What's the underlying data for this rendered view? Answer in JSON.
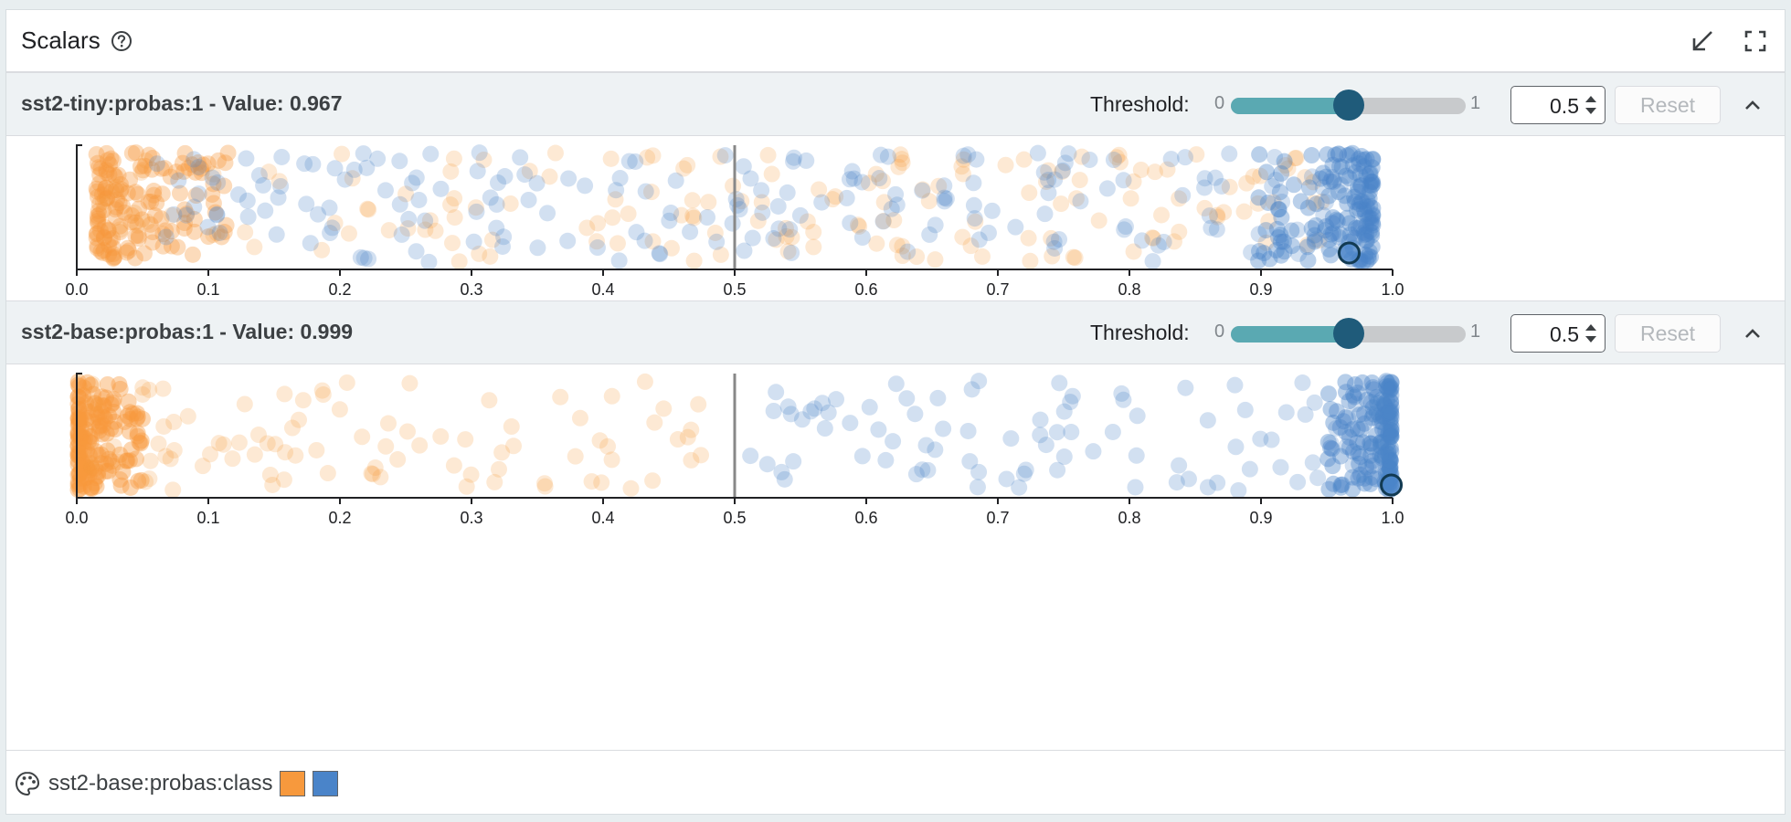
{
  "module": {
    "title": "Scalars"
  },
  "panels": [
    {
      "title": "sst2-tiny:probas:1 - Value: 0.967",
      "threshold_label": "Threshold:",
      "slider_min": "0",
      "slider_max": "1",
      "slider_value": 0.5,
      "threshold_value": "0.5",
      "reset_label": "Reset",
      "selected_value": 0.967
    },
    {
      "title": "sst2-base:probas:1 - Value: 0.999",
      "threshold_label": "Threshold:",
      "slider_min": "0",
      "slider_max": "1",
      "slider_value": 0.5,
      "threshold_value": "0.5",
      "reset_label": "Reset",
      "selected_value": 0.999
    }
  ],
  "legend": {
    "label": "sst2-base:probas:class",
    "swatches": [
      "#f7993d",
      "#4a84c9"
    ]
  },
  "colors": {
    "class_0": "#f7993d",
    "class_1": "#4a84c9",
    "threshold_line": "#888888",
    "accent": "#5aa9b2"
  },
  "icons": {
    "help": "help-circle-icon",
    "collapse_module": "arrow-down-left-icon",
    "fullscreen": "fullscreen-icon",
    "panel_collapse": "chevron-up-icon",
    "palette": "palette-icon"
  },
  "chart_data": [
    {
      "type": "scatter",
      "title": "sst2-tiny:probas:1",
      "xlim": [
        0,
        1
      ],
      "x_ticks": [
        "0.0",
        "0.1",
        "0.2",
        "0.3",
        "0.4",
        "0.5",
        "0.6",
        "0.7",
        "0.8",
        "0.9",
        "1.0"
      ],
      "threshold": 0.5,
      "selected_point": 0.967,
      "series": [
        {
          "name": "0",
          "color": "#f7993d",
          "density": "concentrated near 0.0, sparse up to 0.95"
        },
        {
          "name": "1",
          "color": "#4a84c9",
          "density": "concentrated near 1.0, sparse down to 0.05"
        }
      ]
    },
    {
      "type": "scatter",
      "title": "sst2-base:probas:1",
      "xlim": [
        0,
        1
      ],
      "x_ticks": [
        "0.0",
        "0.1",
        "0.2",
        "0.3",
        "0.4",
        "0.5",
        "0.6",
        "0.7",
        "0.8",
        "0.9",
        "1.0"
      ],
      "threshold": 0.5,
      "selected_point": 0.999,
      "series": [
        {
          "name": "0",
          "color": "#f7993d",
          "density": "strongly concentrated at 0.0, sparse up to 0.48"
        },
        {
          "name": "1",
          "color": "#4a84c9",
          "density": "strongly concentrated at 1.0, sparse down to 0.5"
        }
      ]
    }
  ]
}
